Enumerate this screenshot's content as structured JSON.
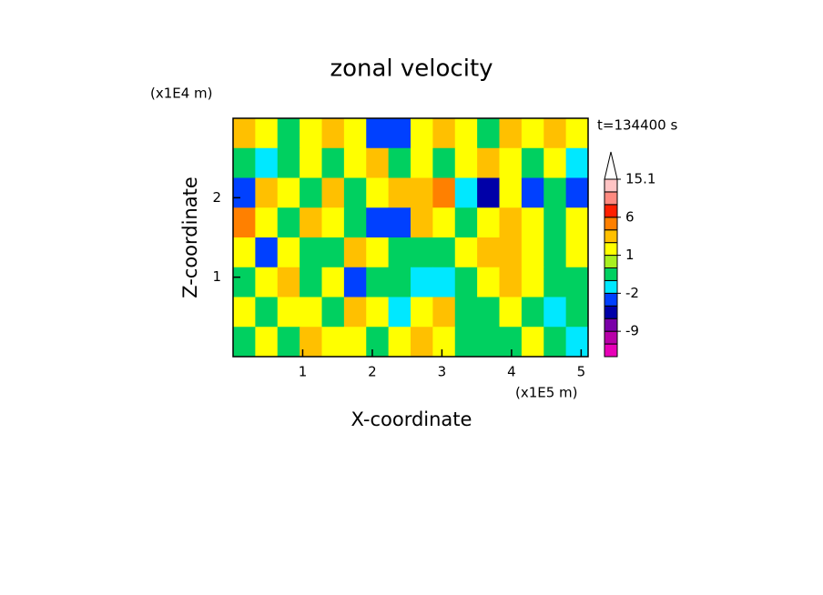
{
  "chart_data": {
    "type": "contour",
    "title": "zonal velocity",
    "time_label": "t=134400 s",
    "xlabel": "X-coordinate",
    "ylabel": "Z-coordinate",
    "xunit": "(x1E5 m)",
    "yunit": "(x1E4 m)",
    "xlim": [
      0,
      5.1
    ],
    "ylim": [
      0,
      3
    ],
    "xticks": [
      1,
      2,
      3,
      4,
      5
    ],
    "yticks": [
      1,
      2
    ],
    "levels": [
      -15,
      -12,
      -9,
      -6,
      -4,
      -2,
      -1,
      0,
      1,
      2,
      4,
      6,
      9,
      12,
      15.1
    ],
    "colors": [
      "#e800b8",
      "#b800a8",
      "#7a00a8",
      "#0000a8",
      "#0040ff",
      "#00e8ff",
      "#00d060",
      "#a8f020",
      "#ffff00",
      "#ffc000",
      "#ff8000",
      "#ff2000",
      "#ff8a80",
      "#ffc4c4"
    ],
    "colorbar_ticks": [
      15.1,
      6,
      1,
      -2,
      -9
    ],
    "field": [
      [
        3,
        1.5,
        -0.5,
        1.5,
        3,
        1.5,
        -3,
        -3,
        1.5,
        3,
        1.5,
        -0.5,
        3,
        1.5,
        3,
        1.5
      ],
      [
        -0.5,
        -1.5,
        -0.5,
        1.5,
        -0.5,
        1.5,
        3,
        -0.5,
        1.5,
        -0.5,
        1.5,
        3,
        1.5,
        -0.5,
        1.5,
        -1.5
      ],
      [
        -3,
        3,
        1.5,
        -0.5,
        3,
        -0.5,
        1.5,
        3,
        3,
        5,
        -1.5,
        -5,
        1.5,
        -3,
        -0.5,
        -3
      ],
      [
        5,
        1.5,
        -0.5,
        3,
        1.5,
        -0.5,
        -3,
        -3,
        3,
        1.5,
        -0.5,
        1.5,
        3,
        1.5,
        -0.5,
        1.5
      ],
      [
        1.5,
        -3,
        1.5,
        -0.5,
        -0.5,
        3,
        1.5,
        -0.5,
        -0.5,
        -0.5,
        1.5,
        3,
        3,
        1.5,
        -0.5,
        1.5
      ],
      [
        -0.5,
        1.5,
        3,
        -0.5,
        1.5,
        -3,
        -0.5,
        -0.5,
        -1.5,
        -1.5,
        -0.5,
        1.5,
        3,
        1.5,
        -0.5,
        -0.5
      ],
      [
        1.5,
        -0.5,
        1.5,
        1.5,
        -0.5,
        3,
        1.5,
        -1.5,
        1.5,
        3,
        -0.5,
        -0.5,
        1.5,
        -0.5,
        -1.5,
        -0.5
      ],
      [
        -0.5,
        1.5,
        -0.5,
        3,
        1.5,
        1.5,
        -0.5,
        1.5,
        3,
        1.5,
        -0.5,
        -0.5,
        -0.5,
        1.5,
        -0.5,
        -1.5
      ]
    ]
  }
}
